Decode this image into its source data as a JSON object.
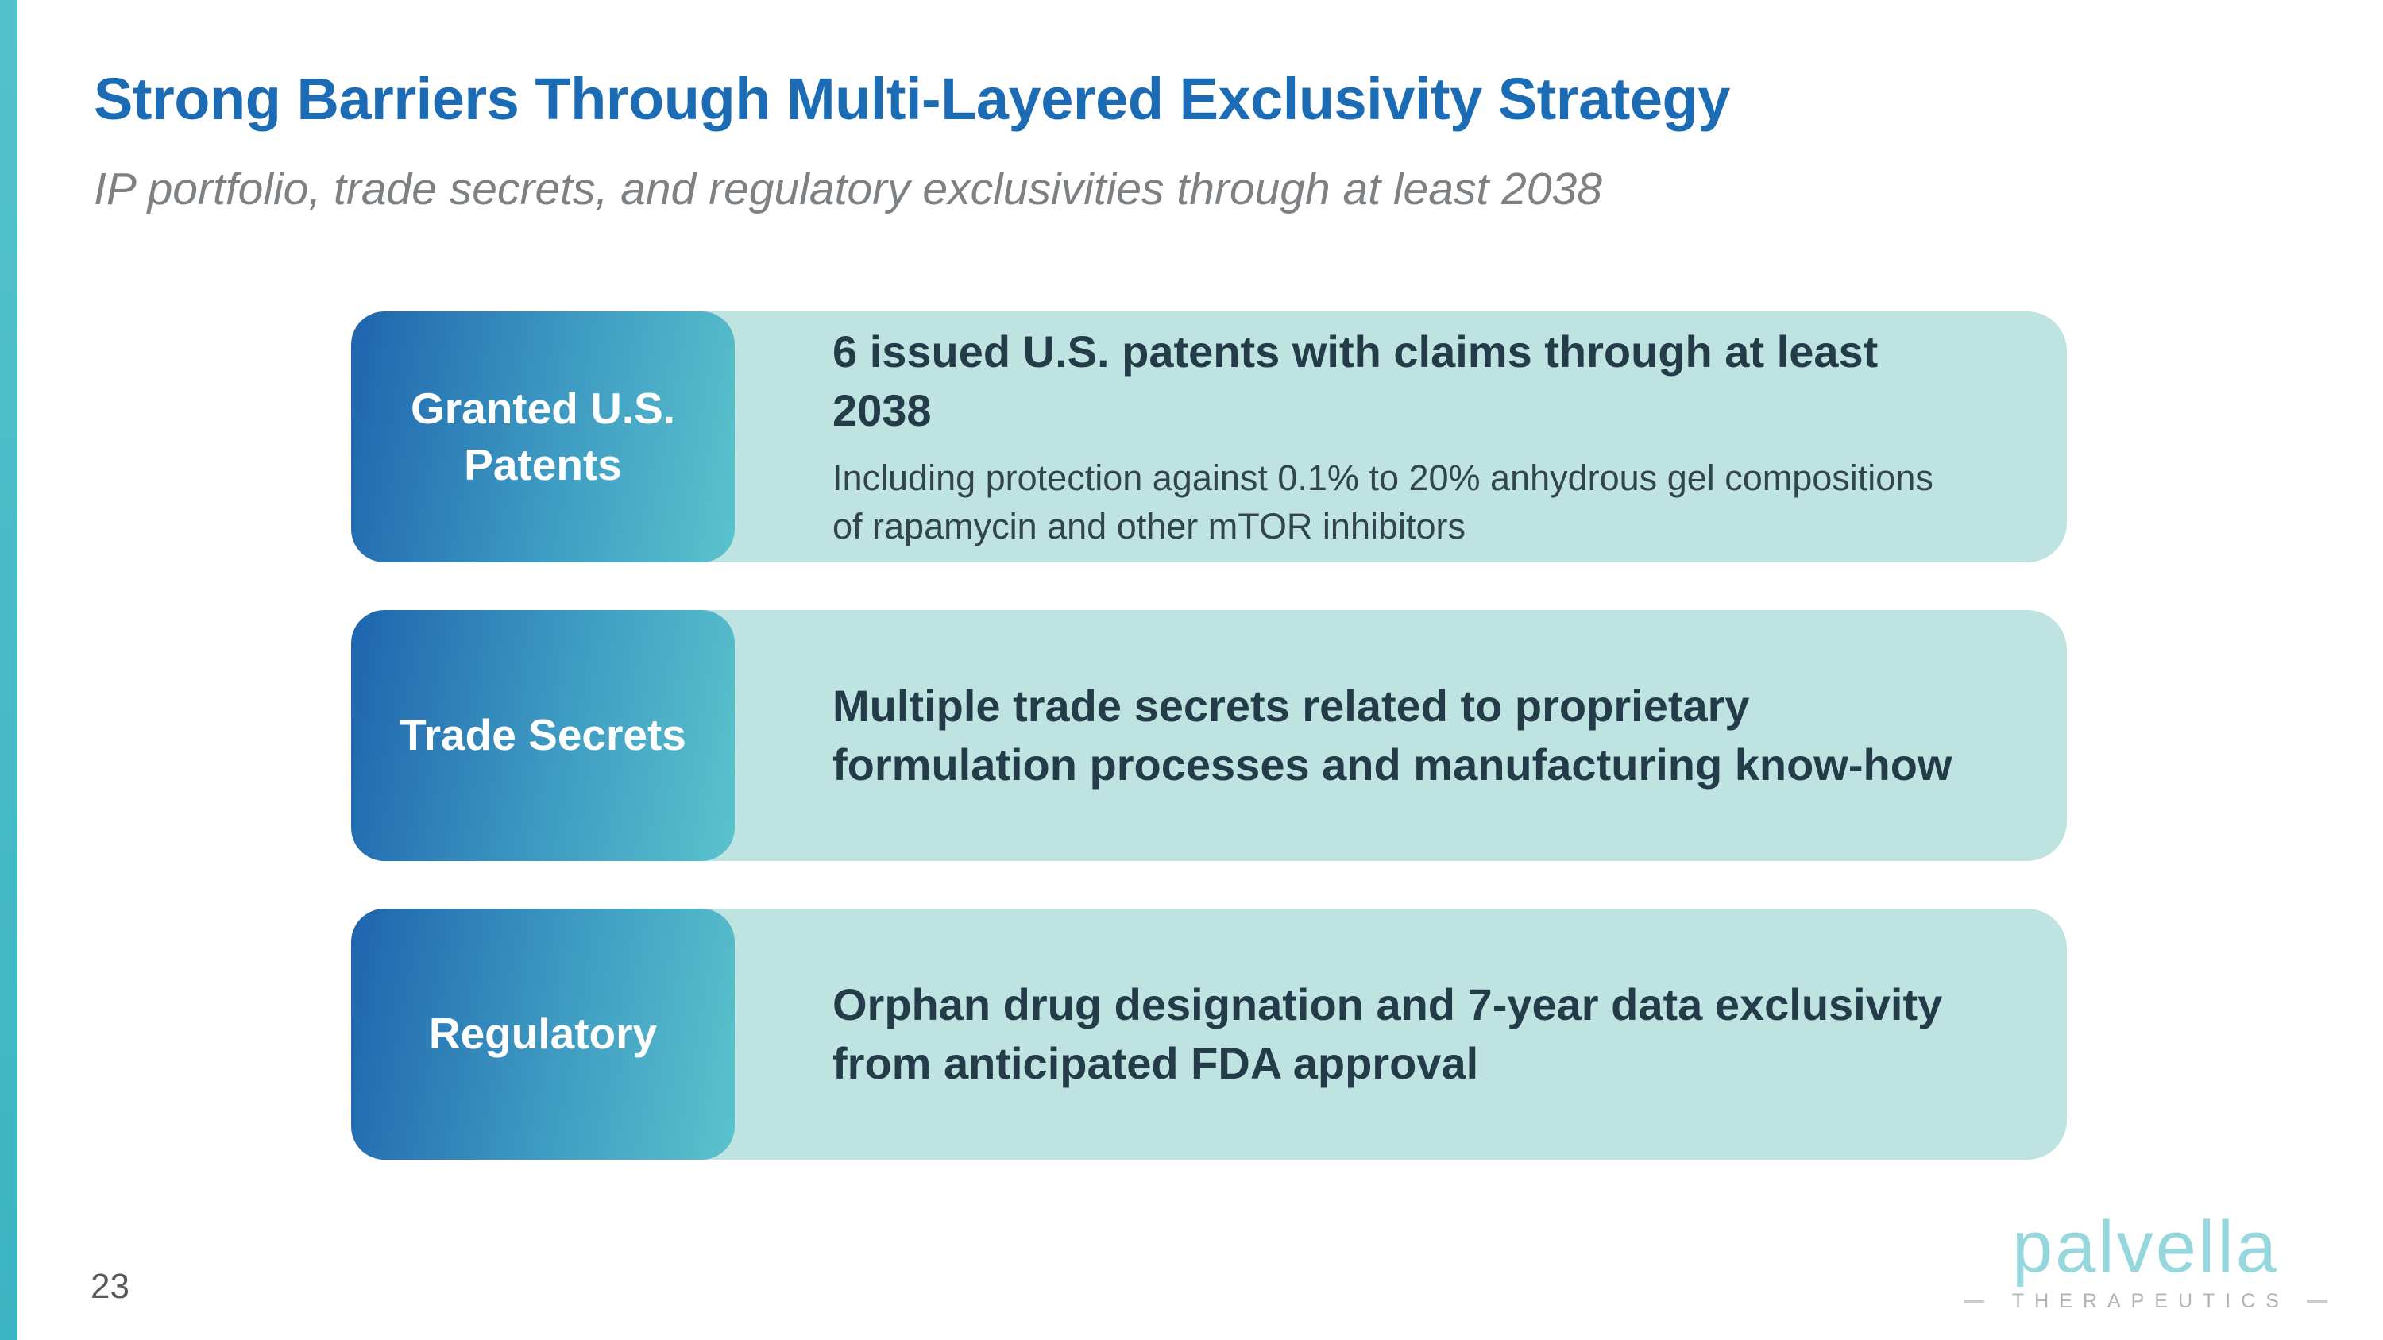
{
  "slide": {
    "title": "Strong Barriers Through Multi-Layered Exclusivity Strategy",
    "subtitle": "IP portfolio, trade secrets, and regulatory exclusivities through at least 2038",
    "page_number": "23"
  },
  "rows": [
    {
      "label": "Granted U.S. Patents",
      "heading": "6 issued U.S. patents with claims through at least 2038",
      "body": "Including protection against 0.1% to 20% anhydrous gel compositions of rapamycin and other mTOR inhibitors"
    },
    {
      "label": "Trade Secrets",
      "heading": "Multiple trade secrets related to proprietary formulation processes and manufacturing know-how",
      "body": ""
    },
    {
      "label": "Regulatory",
      "heading": "Orphan drug designation and 7-year data exclusivity from anticipated FDA approval",
      "body": ""
    }
  ],
  "logo": {
    "wordmark": "palvella",
    "tagline": "THERAPEUTICS"
  },
  "colors": {
    "title_blue": "#1b6cb5",
    "label_gradient_start": "#1e64ae",
    "label_gradient_end": "#5ac3cd",
    "card_background": "#bfe3e0",
    "accent_stripe": "#47bcc8",
    "heading_text": "#243c4a",
    "body_text": "#32444e",
    "logo_teal": "#96d7dd"
  }
}
